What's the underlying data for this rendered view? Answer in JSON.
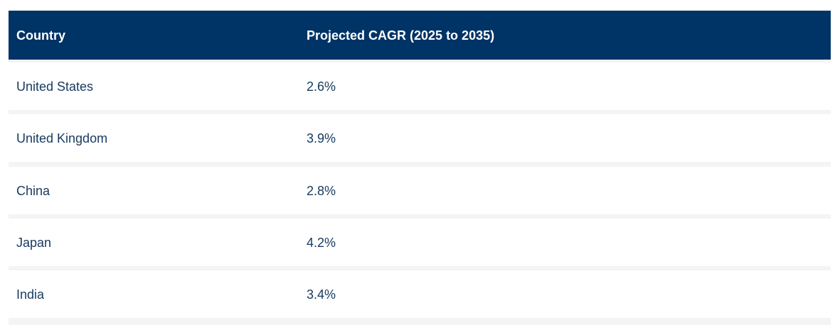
{
  "table": {
    "headers": [
      "Country",
      "Projected CAGR (2025 to 2035)"
    ],
    "rows": [
      {
        "country": "United States",
        "cagr": "2.6%"
      },
      {
        "country": "United Kingdom",
        "cagr": "3.9%"
      },
      {
        "country": "China",
        "cagr": "2.8%"
      },
      {
        "country": "Japan",
        "cagr": "4.2%"
      },
      {
        "country": "India",
        "cagr": "3.4%"
      }
    ]
  },
  "colors": {
    "header_bg": "#003366",
    "header_text": "#ffffff",
    "cell_text": "#163a5f",
    "row_gap": "#f4f4f4"
  }
}
